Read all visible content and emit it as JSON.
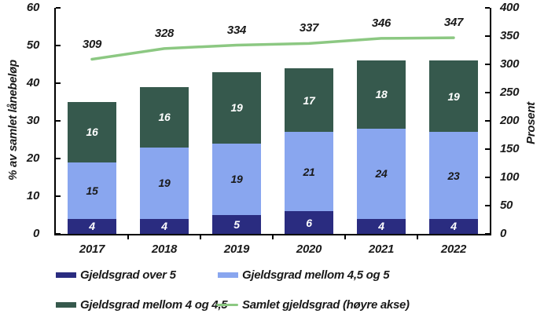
{
  "chart_data": {
    "type": "bar",
    "subtype": "stacked-bars-with-line-overlay",
    "categories": [
      "2017",
      "2018",
      "2019",
      "2020",
      "2021",
      "2022"
    ],
    "series": [
      {
        "name": "Gjeldsgrad over 5",
        "type": "bar",
        "axis": "left",
        "color": "#2a2c80",
        "label_color": "#ffffff",
        "values": [
          4,
          4,
          5,
          6,
          4,
          4
        ]
      },
      {
        "name": "Gjeldsgrad mellom 4,5 og 5",
        "type": "bar",
        "axis": "left",
        "color": "#89a6ef",
        "label_color": "#1a1a1a",
        "values": [
          15,
          19,
          19,
          21,
          24,
          23
        ]
      },
      {
        "name": "Gjeldsgrad mellom 4 og 4,5",
        "type": "bar",
        "axis": "left",
        "color": "#36594d",
        "label_color": "#ffffff",
        "values": [
          16,
          16,
          19,
          17,
          18,
          19
        ]
      },
      {
        "name": "Samlet gjeldsgrad (høyre akse)",
        "type": "line",
        "axis": "right",
        "color": "#8cc882",
        "values": [
          309,
          328,
          334,
          337,
          346,
          347
        ]
      }
    ],
    "left_axis": {
      "title": "% av samlet lånebeløp",
      "min": 0,
      "max": 60,
      "tick_labels": [
        "0",
        "10",
        "20",
        "30",
        "40",
        "50",
        "60"
      ]
    },
    "right_axis": {
      "title": "Prosent",
      "min": 0,
      "max": 400,
      "tick_labels": [
        "0",
        "50",
        "100",
        "150",
        "200",
        "250",
        "300",
        "350",
        "400"
      ]
    },
    "grid": false,
    "legend_position": "bottom",
    "legend": [
      {
        "label": "Gjeldsgrad over 5",
        "swatch": "rect",
        "color": "#2a2c80"
      },
      {
        "label": "Gjeldsgrad mellom 4,5 og 5",
        "swatch": "rect",
        "color": "#89a6ef"
      },
      {
        "label": "Gjeldsgrad mellom 4 og 4,5",
        "swatch": "rect",
        "color": "#36594d"
      },
      {
        "label": "Samlet gjeldsgrad (høyre akse)",
        "swatch": "line",
        "color": "#8cc882"
      }
    ]
  },
  "colors": {
    "axis": "#000000",
    "text": "#1a1a1a",
    "background": "#ffffff"
  }
}
